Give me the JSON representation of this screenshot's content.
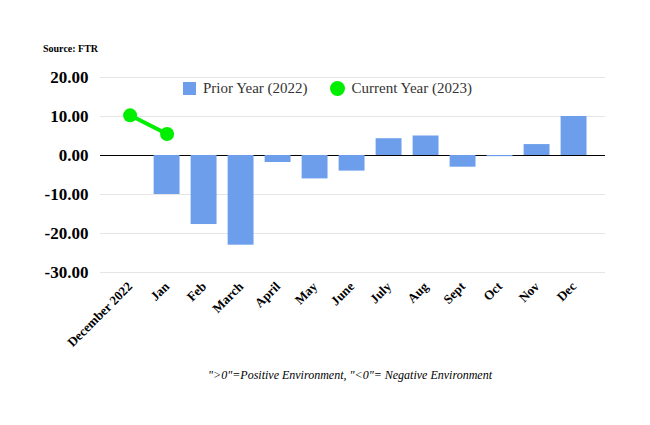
{
  "chart_data": {
    "type": "bar",
    "annotations": [
      "Source: FTR",
      "\">0\"=Positive Environment, \"<0\"= Negative Environment"
    ],
    "categories": [
      "December 2022",
      "Jan",
      "Feb",
      "March",
      "April",
      "May",
      "June",
      "July",
      "Aug",
      "Sept",
      "Oct",
      "Nov",
      "Dec"
    ],
    "series": [
      {
        "name": "Prior Year (2022)",
        "type": "bar",
        "color": "#6d9eeb",
        "values": [
          null,
          -10,
          -17.7,
          -23,
          -1.8,
          -6,
          -4,
          4.3,
          5,
          -3,
          -0.3,
          2.8,
          10
        ]
      },
      {
        "name": "Current Year (2023)",
        "type": "line",
        "color": "#00ee00",
        "marker": "circle",
        "values": [
          10.3,
          5.5,
          null,
          null,
          null,
          null,
          null,
          null,
          null,
          null,
          null,
          null,
          null
        ]
      }
    ],
    "ylim": [
      -30,
      20
    ],
    "yticks": [
      {
        "value": -30,
        "label": "-30.00"
      },
      {
        "value": -20,
        "label": "-20.00"
      },
      {
        "value": -10,
        "label": "-10.00"
      },
      {
        "value": 0,
        "label": "0.00"
      },
      {
        "value": 10,
        "label": "10.00"
      },
      {
        "value": 20,
        "label": "20.00"
      }
    ],
    "grid": true,
    "legend": "top"
  }
}
